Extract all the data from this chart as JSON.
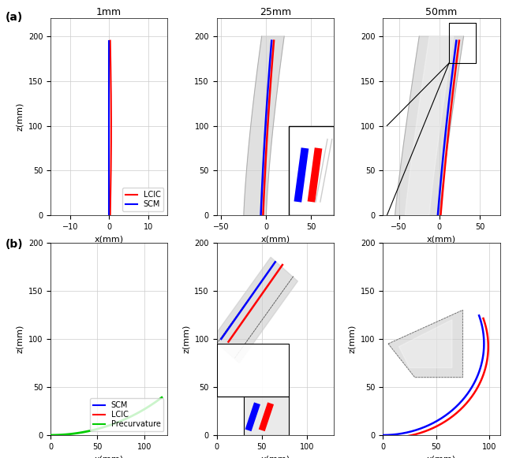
{
  "fig_width": 6.4,
  "fig_height": 5.81,
  "background": "#ffffff",
  "color_lcic": "#FF0000",
  "color_scm": "#0000FF",
  "color_green": "#00CC00",
  "color_gray_fill": "#C8C8C8",
  "gray_alpha": 0.55,
  "a1_xlim": [
    -15,
    15
  ],
  "a1_ylim": [
    0,
    220
  ],
  "a1_xticks": [
    -10,
    0,
    10
  ],
  "a1_yticks": [
    0,
    50,
    100,
    150,
    200
  ],
  "a2_xlim": [
    -55,
    75
  ],
  "a2_ylim": [
    0,
    220
  ],
  "a2_xticks": [
    -50,
    0,
    50
  ],
  "a2_yticks": [
    0,
    50,
    100,
    150,
    200
  ],
  "a3_xlim": [
    -70,
    75
  ],
  "a3_ylim": [
    0,
    220
  ],
  "a3_xticks": [
    -50,
    0,
    50
  ],
  "a3_yticks": [
    0,
    50,
    100,
    150,
    200
  ],
  "b1_xlim": [
    0,
    125
  ],
  "b1_ylim": [
    0,
    200
  ],
  "b1_xticks": [
    0,
    50,
    100
  ],
  "b1_yticks": [
    0,
    50,
    100,
    150,
    200
  ],
  "b2_xlim": [
    0,
    130
  ],
  "b2_ylim": [
    0,
    200
  ],
  "b2_xticks": [
    0,
    50,
    100
  ],
  "b2_yticks": [
    0,
    50,
    100,
    150,
    200
  ],
  "b3_xlim": [
    0,
    110
  ],
  "b3_ylim": [
    0,
    200
  ],
  "b3_xticks": [
    0,
    50,
    100
  ],
  "b3_yticks": [
    0,
    50,
    100,
    150,
    200
  ]
}
